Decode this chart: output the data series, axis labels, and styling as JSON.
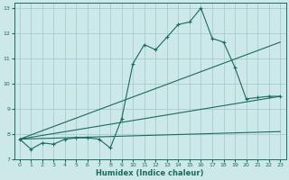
{
  "xlabel": "Humidex (Indice chaleur)",
  "bg_color": "#cce8e8",
  "grid_color": "#aacccc",
  "line_color": "#1a6b5a",
  "xlim": [
    -0.5,
    23.5
  ],
  "ylim": [
    7,
    13.2
  ],
  "yticks": [
    7,
    8,
    9,
    10,
    11,
    12,
    13
  ],
  "xticks": [
    0,
    1,
    2,
    3,
    4,
    5,
    6,
    7,
    8,
    9,
    10,
    11,
    12,
    13,
    14,
    15,
    16,
    17,
    18,
    19,
    20,
    21,
    22,
    23
  ],
  "data_x": [
    0,
    1,
    2,
    3,
    4,
    5,
    6,
    7,
    8,
    9,
    10,
    11,
    12,
    13,
    14,
    15,
    16,
    17,
    18,
    19,
    20,
    21,
    22,
    23
  ],
  "data_y": [
    7.8,
    7.4,
    7.65,
    7.6,
    7.8,
    7.85,
    7.85,
    7.8,
    7.45,
    8.6,
    10.8,
    11.55,
    11.35,
    11.85,
    12.35,
    12.45,
    13.0,
    11.8,
    11.65,
    10.65,
    9.4,
    9.45,
    9.5,
    9.5
  ],
  "regression_lines": [
    {
      "x0": 0,
      "y0": 7.8,
      "x1": 23,
      "y1": 8.1
    },
    {
      "x0": 0,
      "y0": 7.8,
      "x1": 23,
      "y1": 9.5
    },
    {
      "x0": 0,
      "y0": 7.8,
      "x1": 23,
      "y1": 11.65
    }
  ],
  "tick_labelsize": 4.5,
  "xlabel_fontsize": 6.0
}
